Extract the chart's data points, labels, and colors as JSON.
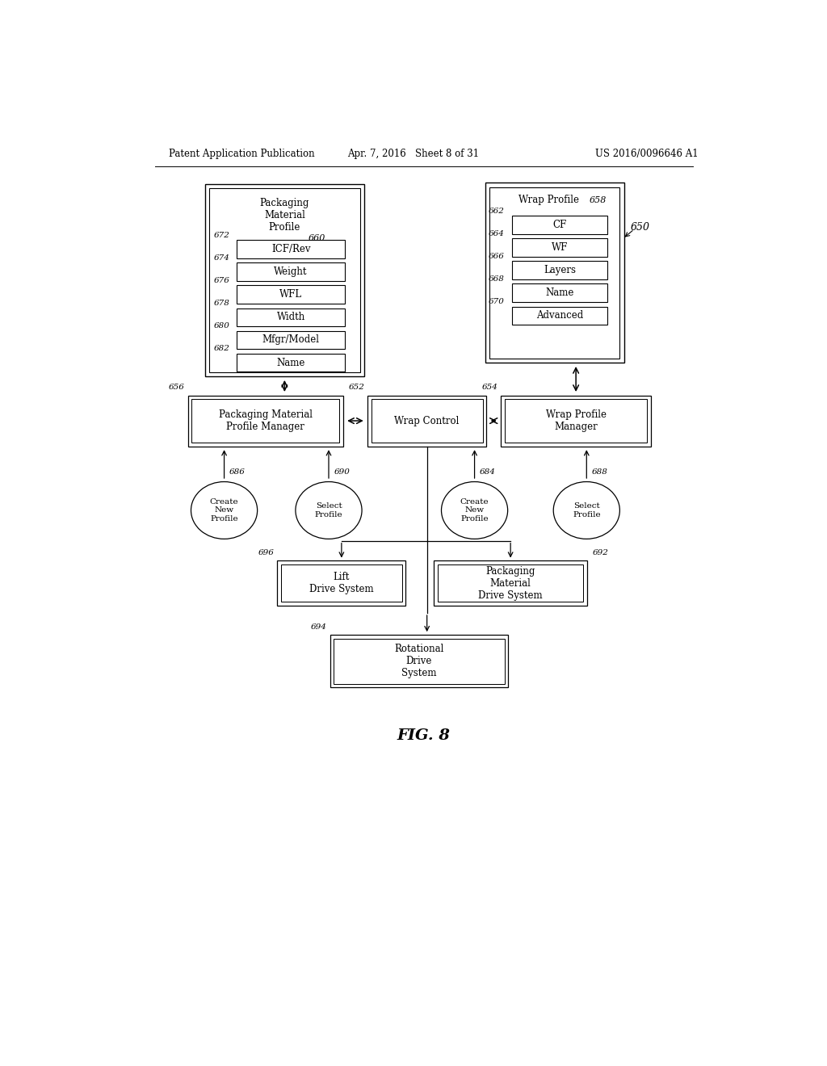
{
  "fig_width": 10.24,
  "fig_height": 13.2,
  "bg_color": "#ffffff",
  "header_left": "Patent Application Publication",
  "header_mid": "Apr. 7, 2016   Sheet 8 of 31",
  "header_right": "US 2016/0096646 A1",
  "figure_label": "FIG. 8",
  "ref_650": "650",
  "packaging_profile_title": "Packaging\nMaterial\nProfile",
  "packaging_profile_ref": "660",
  "wrap_profile_title": "Wrap Profile",
  "wrap_profile_ref": "658",
  "pkg_items": [
    {
      "ref": "672",
      "label": "ICF/Rev"
    },
    {
      "ref": "674",
      "label": "Weight"
    },
    {
      "ref": "676",
      "label": "WFL"
    },
    {
      "ref": "678",
      "label": "Width"
    },
    {
      "ref": "680",
      "label": "Mfgr/Model"
    },
    {
      "ref": "682",
      "label": "Name"
    }
  ],
  "wrap_items": [
    {
      "ref": "662",
      "label": "CF"
    },
    {
      "ref": "664",
      "label": "WF"
    },
    {
      "ref": "666",
      "label": "Layers"
    },
    {
      "ref": "668",
      "label": "Name"
    },
    {
      "ref": "670",
      "label": "Advanced"
    }
  ],
  "pkg_manager_label": "Packaging Material\nProfile Manager",
  "pkg_manager_ref": "656",
  "wrap_control_label": "Wrap Control",
  "wrap_control_ref": "652",
  "wrap_profile_manager_label": "Wrap Profile\nManager",
  "wrap_profile_manager_ref": "654",
  "create_new_left_label": "Create\nNew\nProfile",
  "create_new_left_ref": "686",
  "select_left_label": "Select\nProfile",
  "select_left_ref": "690",
  "create_new_right_label": "Create\nNew\nProfile",
  "create_new_right_ref": "684",
  "select_right_label": "Select\nProfile",
  "select_right_ref": "688",
  "lift_drive_label": "Lift\nDrive System",
  "lift_drive_ref": "696",
  "pkg_drive_label": "Packaging\nMaterial\nDrive System",
  "pkg_drive_ref": "692",
  "rotational_drive_label": "Rotational\nDrive\nSystem",
  "rotational_drive_ref": "694"
}
